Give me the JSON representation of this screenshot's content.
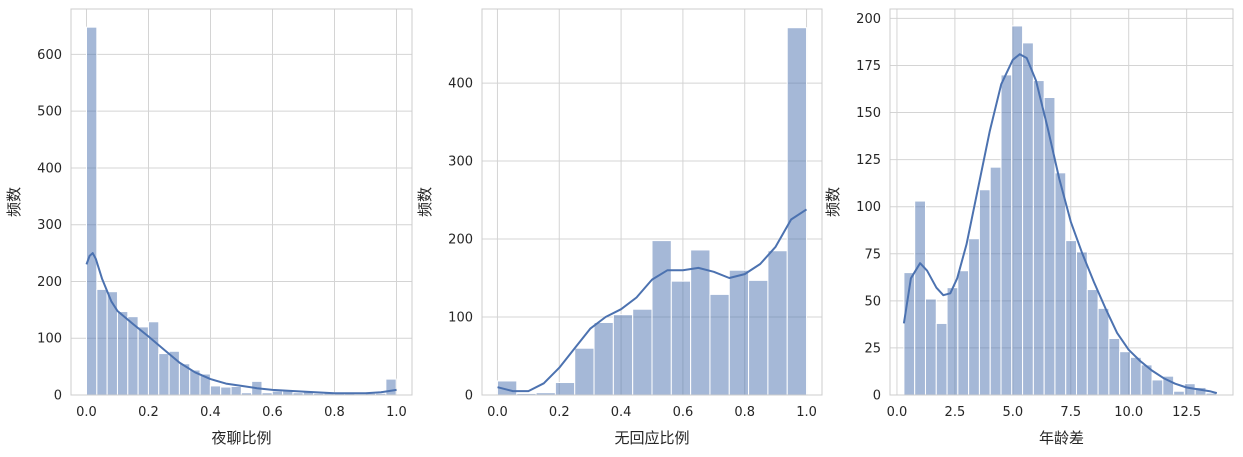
{
  "chart_data": [
    {
      "type": "bar",
      "subtype": "histogram_with_kde",
      "xlabel": "夜聊比例",
      "ylabel": "频数",
      "xlim": [
        -0.05,
        1.05
      ],
      "ylim": [
        0,
        680
      ],
      "xticks": [
        0.0,
        0.2,
        0.4,
        0.6,
        0.8,
        1.0
      ],
      "xtick_labels": [
        "0.0",
        "0.2",
        "0.4",
        "0.6",
        "0.8",
        "1.0"
      ],
      "yticks": [
        0,
        100,
        200,
        300,
        400,
        500,
        600
      ],
      "ytick_labels": [
        "0",
        "100",
        "200",
        "300",
        "400",
        "500",
        "600"
      ],
      "grid": true,
      "color": "#4c72b0",
      "bar_alpha": 0.5,
      "bins": {
        "start": 0.0,
        "width": 0.0333,
        "counts": [
          648,
          186,
          182,
          147,
          138,
          120,
          129,
          73,
          77,
          55,
          44,
          37,
          16,
          14,
          15,
          4,
          24,
          4,
          7,
          7,
          4,
          6,
          3,
          4,
          3,
          3,
          2,
          3,
          3,
          28
        ]
      },
      "kde": {
        "x": [
          0.0,
          0.01,
          0.02,
          0.03,
          0.05,
          0.08,
          0.1,
          0.15,
          0.2,
          0.25,
          0.3,
          0.35,
          0.4,
          0.45,
          0.5,
          0.55,
          0.6,
          0.7,
          0.8,
          0.9,
          0.95,
          1.0
        ],
        "y": [
          230,
          245,
          250,
          240,
          205,
          165,
          148,
          125,
          103,
          80,
          57,
          40,
          28,
          20,
          16,
          12,
          9,
          6,
          3,
          3,
          5,
          9
        ]
      }
    },
    {
      "type": "bar",
      "subtype": "histogram_with_kde",
      "xlabel": "无回应比例",
      "ylabel": "频数",
      "xlim": [
        -0.05,
        1.05
      ],
      "ylim": [
        0,
        495
      ],
      "xticks": [
        0.0,
        0.2,
        0.4,
        0.6,
        0.8,
        1.0
      ],
      "xtick_labels": [
        "0.0",
        "0.2",
        "0.4",
        "0.6",
        "0.8",
        "1.0"
      ],
      "yticks": [
        0,
        100,
        200,
        300,
        400
      ],
      "ytick_labels": [
        "0",
        "100",
        "200",
        "300",
        "400"
      ],
      "grid": true,
      "color": "#4c72b0",
      "bar_alpha": 0.5,
      "bins": {
        "start": 0.0,
        "width": 0.0625,
        "counts": [
          18,
          2,
          3,
          16,
          60,
          93,
          103,
          110,
          198,
          146,
          186,
          129,
          160,
          147,
          185,
          471
        ]
      },
      "kde": {
        "x": [
          0.0,
          0.05,
          0.1,
          0.15,
          0.2,
          0.25,
          0.3,
          0.35,
          0.4,
          0.45,
          0.5,
          0.55,
          0.6,
          0.65,
          0.7,
          0.75,
          0.8,
          0.85,
          0.9,
          0.95,
          1.0
        ],
        "y": [
          10,
          5,
          5,
          15,
          35,
          60,
          85,
          100,
          110,
          125,
          148,
          160,
          160,
          163,
          158,
          150,
          155,
          168,
          190,
          225,
          238
        ]
      }
    },
    {
      "type": "bar",
      "subtype": "histogram_with_kde",
      "xlabel": "年龄差",
      "ylabel": "频数",
      "xlim": [
        -0.3,
        14.5
      ],
      "ylim": [
        0,
        205
      ],
      "xticks": [
        0.0,
        2.5,
        5.0,
        7.5,
        10.0,
        12.5
      ],
      "xtick_labels": [
        "0.0",
        "2.5",
        "5.0",
        "7.5",
        "10.0",
        "12.5"
      ],
      "yticks": [
        0,
        25,
        50,
        75,
        100,
        125,
        150,
        175,
        200
      ],
      "ytick_labels": [
        "0",
        "25",
        "50",
        "75",
        "100",
        "125",
        "150",
        "175",
        "200"
      ],
      "grid": true,
      "color": "#4c72b0",
      "bar_alpha": 0.5,
      "bins": {
        "start": 0.3,
        "width": 0.4655,
        "counts": [
          65,
          103,
          51,
          38,
          57,
          66,
          83,
          109,
          121,
          170,
          196,
          187,
          167,
          158,
          118,
          82,
          76,
          56,
          46,
          30,
          23,
          20,
          16,
          8,
          10,
          2,
          6,
          4,
          1
        ]
      },
      "kde": {
        "x": [
          0.3,
          0.6,
          1.0,
          1.3,
          1.7,
          2.0,
          2.3,
          2.6,
          3.0,
          3.5,
          4.0,
          4.5,
          5.0,
          5.3,
          5.6,
          6.0,
          6.5,
          7.0,
          7.5,
          8.0,
          8.5,
          9.0,
          9.5,
          10.0,
          10.5,
          11.0,
          11.5,
          12.0,
          12.5,
          13.0,
          13.5,
          13.8
        ],
        "y": [
          38,
          62,
          70,
          66,
          57,
          53,
          54,
          62,
          80,
          110,
          140,
          165,
          178,
          181,
          179,
          167,
          142,
          115,
          92,
          75,
          60,
          46,
          33,
          24,
          18,
          13,
          9,
          6,
          4,
          3,
          2,
          1
        ]
      }
    }
  ]
}
